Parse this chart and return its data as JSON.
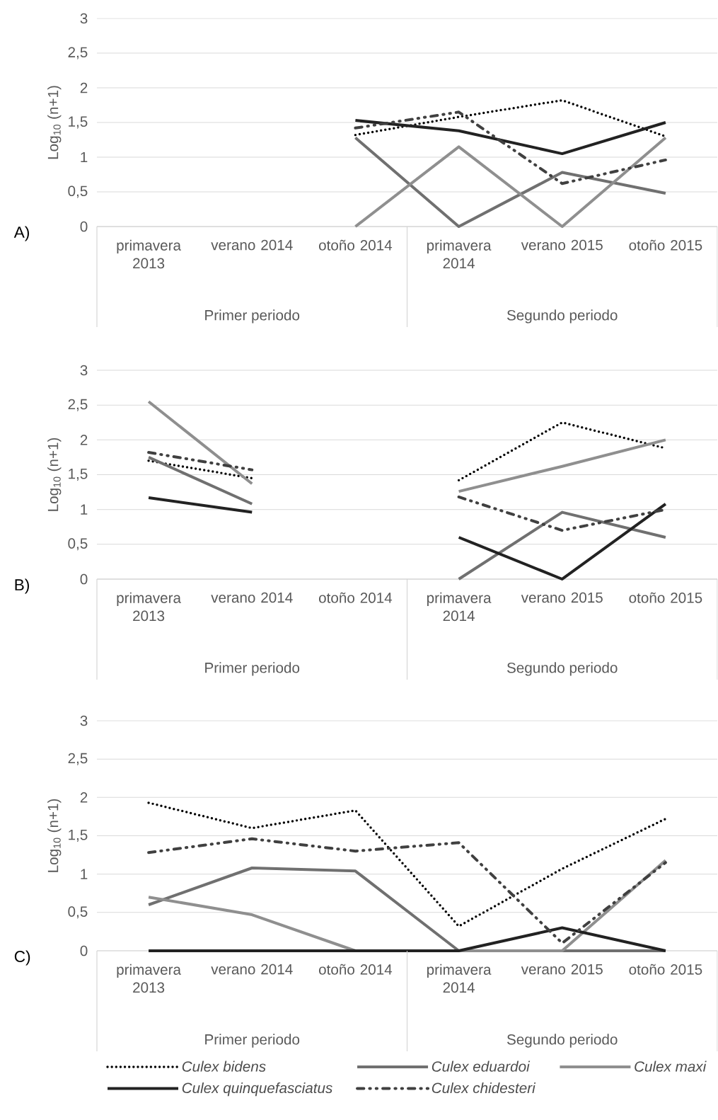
{
  "chart_data": [
    {
      "type": "line",
      "ylabel": "Log$_{10}$ (n+1)",
      "annotations": [
        "A)",
        "Primer periodo",
        "Segundo periodo"
      ],
      "categories": [
        "primavera 2013",
        "verano 2014",
        "otoño 2014",
        "primavera 2014",
        "verano 2015",
        "otoño 2015"
      ],
      "ylim": [
        0,
        3
      ],
      "yticks": [
        0,
        {
          "value": 0.5,
          "label": "0,5"
        },
        1,
        {
          "value": 1.5,
          "label": "1,5"
        },
        2,
        {
          "value": 2.5,
          "label": "2,5"
        },
        3
      ],
      "grid": "y",
      "legend": false,
      "marker": "none",
      "series": [
        {
          "color": "#000000",
          "line_style": "dotted",
          "values": [
            null,
            null,
            1.32,
            1.58,
            1.82,
            1.3
          ]
        },
        {
          "color": "#707070",
          "line_style": "solid",
          "values": [
            null,
            null,
            1.28,
            0,
            0.78,
            0.48
          ]
        },
        {
          "color": "#8f8f8f",
          "line_style": "solid",
          "values": [
            null,
            null,
            0,
            1.15,
            0,
            1.28
          ]
        },
        {
          "color": "#222222",
          "line_style": "solid",
          "values": [
            null,
            null,
            1.53,
            1.38,
            1.05,
            1.5
          ]
        },
        {
          "color": "#404040",
          "line_style": "dashed",
          "values": [
            null,
            null,
            1.42,
            1.65,
            0.62,
            0.96
          ]
        }
      ]
    },
    {
      "type": "line",
      "ylabel": "Log$_{10}$ (n+1)",
      "annotations": [
        "B)",
        "Primer periodo",
        "Segundo periodo"
      ],
      "categories": [
        "primavera 2013",
        "verano 2014",
        "otoño 2014",
        "primavera 2014",
        "verano 2015",
        "otoño 2015"
      ],
      "ylim": [
        0,
        3
      ],
      "yticks": [
        0,
        {
          "value": 0.5,
          "label": "0,5"
        },
        1,
        {
          "value": 1.5,
          "label": "1,5"
        },
        2,
        {
          "value": 2.5,
          "label": "2,5"
        },
        3
      ],
      "grid": "y",
      "legend": false,
      "marker": "none",
      "series": [
        {
          "color": "#000000",
          "line_style": "dotted",
          "values": [
            1.7,
            1.45,
            null,
            1.42,
            2.25,
            1.88
          ]
        },
        {
          "color": "#707070",
          "line_style": "solid",
          "values": [
            1.75,
            1.08,
            null,
            0,
            0.96,
            0.6
          ]
        },
        {
          "color": "#8f8f8f",
          "line_style": "solid",
          "values": [
            2.55,
            1.37,
            null,
            1.26,
            1.62,
            2.0
          ]
        },
        {
          "color": "#222222",
          "line_style": "solid",
          "values": [
            1.17,
            0.96,
            null,
            0.6,
            0,
            1.08
          ]
        },
        {
          "color": "#404040",
          "line_style": "dashed",
          "values": [
            1.82,
            1.57,
            null,
            1.18,
            0.7,
            1.0
          ]
        }
      ]
    },
    {
      "type": "line",
      "ylabel": "Log$_{10}$ (n+1)",
      "annotations": [
        "C)",
        "Primer periodo",
        "Segundo periodo"
      ],
      "categories": [
        "primavera 2013",
        "verano 2014",
        "otoño 2014",
        "primavera 2014",
        "verano 2015",
        "otoño 2015"
      ],
      "ylim": [
        0,
        3
      ],
      "yticks": [
        0,
        {
          "value": 0.5,
          "label": "0,5"
        },
        1,
        {
          "value": 1.5,
          "label": "1,5"
        },
        2,
        {
          "value": 2.5,
          "label": "2,5"
        },
        3
      ],
      "grid": "y",
      "legend": "bottom",
      "marker": "none",
      "series": [
        {
          "name": "Culex bidens",
          "color": "#000000",
          "line_style": "dotted",
          "values": [
            1.93,
            1.6,
            1.83,
            0.32,
            1.07,
            1.72
          ]
        },
        {
          "name": "Culex eduardoi",
          "color": "#707070",
          "line_style": "solid",
          "values": [
            0.6,
            1.08,
            1.04,
            0,
            0,
            0
          ]
        },
        {
          "name": "Culex maxi",
          "color": "#8f8f8f",
          "line_style": "solid",
          "values": [
            0.7,
            0.47,
            0,
            0,
            0,
            1.18
          ]
        },
        {
          "name": "Culex quinquefasciatus",
          "color": "#222222",
          "line_style": "solid",
          "values": [
            0,
            0,
            0,
            0,
            0.3,
            0
          ]
        },
        {
          "name": "Culex chidesteri",
          "color": "#404040",
          "line_style": "dashed",
          "values": [
            1.28,
            1.46,
            1.3,
            1.41,
            0.1,
            1.15
          ]
        }
      ]
    }
  ]
}
